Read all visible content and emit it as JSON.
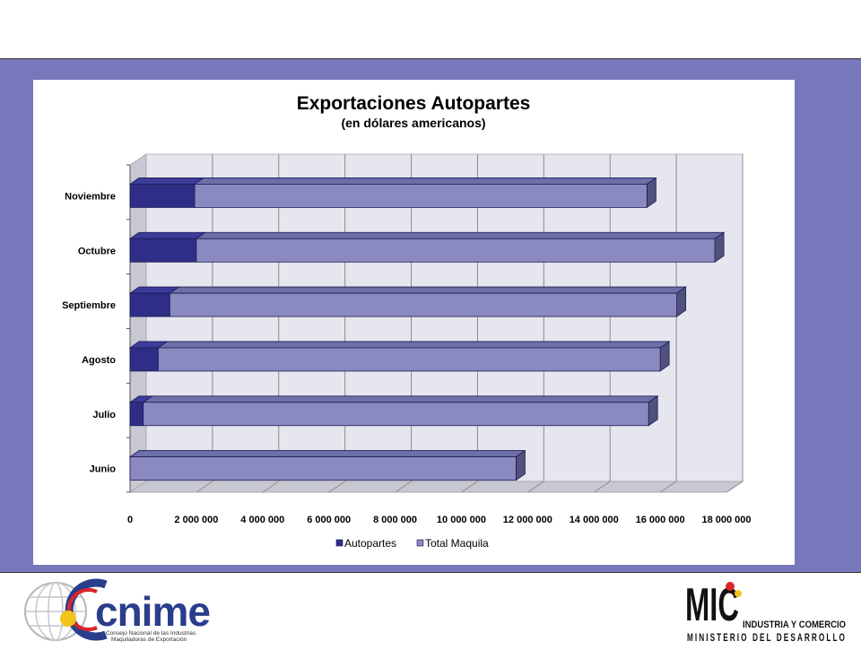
{
  "colors": {
    "band": "#7777bb",
    "autopartes": "#2e2e86",
    "autopartes_top": "#3c3c99",
    "autopartes_side": "#1e1e5e",
    "total": "#8a8ac0",
    "total_top": "#6e6ea8",
    "total_side": "#51517e",
    "wall": "#e6e6ee",
    "floor": "#c8c8d2",
    "grid": "#8c8c8c"
  },
  "chart_data": {
    "type": "bar",
    "orientation": "horizontal",
    "stacked": true,
    "three_d": true,
    "title": "Exportaciones Autopartes",
    "subtitle": "(en dólares americanos)",
    "categories": [
      "Junio",
      "Julio",
      "Agosto",
      "Septiembre",
      "Octubre",
      "Noviembre"
    ],
    "series": [
      {
        "name": "Autopartes",
        "values": [
          0,
          400000,
          850000,
          1200000,
          2000000,
          1950000
        ]
      },
      {
        "name": "Total Maquila",
        "values": [
          11650000,
          15250000,
          15150000,
          15300000,
          15650000,
          13650000
        ]
      }
    ],
    "xlim": [
      0,
      18000000
    ],
    "xticks": [
      0,
      2000000,
      4000000,
      6000000,
      8000000,
      10000000,
      12000000,
      14000000,
      16000000,
      18000000
    ],
    "xtick_labels": [
      "0",
      "2 000 000",
      "4 000 000",
      "6 000 000",
      "8 000 000",
      "10 000 000",
      "12 000 000",
      "14 000 000",
      "16 000 000",
      "18 000 000"
    ],
    "grid": true,
    "legend_position": "bottom"
  },
  "footer": {
    "cnime": {
      "logo_text": "cnime",
      "line1": "Consejo Nacional de las Industrias",
      "line2": "Maquiladoras de Exportación"
    },
    "mic": {
      "logo_text": "MIC",
      "line1": "INDUSTRIA Y COMERCIO",
      "line2": "MINISTERIO DEL DESARROLLO"
    }
  }
}
